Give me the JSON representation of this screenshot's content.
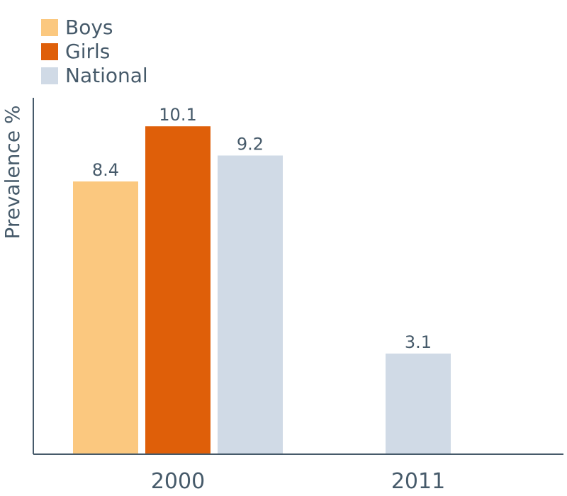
{
  "chart_data": {
    "type": "bar",
    "ylabel": "Prevalence %",
    "xlabel": "",
    "categories": [
      "2000",
      "2011"
    ],
    "series": [
      {
        "name": "Boys",
        "color": "#fbc87f",
        "values": [
          8.4,
          null
        ]
      },
      {
        "name": "Girls",
        "color": "#df5f09",
        "values": [
          10.1,
          null
        ]
      },
      {
        "name": "National",
        "color": "#d0dae6",
        "values": [
          9.2,
          3.1
        ]
      }
    ],
    "data_labels": [
      [
        "8.4",
        ""
      ],
      [
        "10.1",
        ""
      ],
      [
        "9.2",
        "3.1"
      ]
    ],
    "ylim": [
      0,
      11
    ],
    "grid": false,
    "legend_position": "top-left",
    "axis_color": "#465a6a"
  }
}
